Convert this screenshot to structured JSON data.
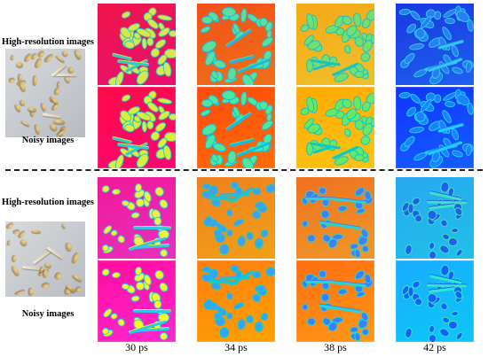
{
  "rows": [
    {
      "hr_label": "High-resolution images",
      "noisy_label": "Noisy images"
    },
    {
      "hr_label": "High-resolution images",
      "noisy_label": "Noisy images"
    }
  ],
  "columns": [
    {
      "label": "30 ps",
      "bg": "#f0154a",
      "bg2": "#e81070",
      "blob": "#d8e84a",
      "edge": "#38c8c0"
    },
    {
      "label": "34 ps",
      "bg": "#f2501a",
      "bg2": "#f07018",
      "blob": "#58e0a0",
      "edge": "#20b8d8"
    },
    {
      "label": "38 ps",
      "bg": "#f6a818",
      "bg2": "#f0c028",
      "blob": "#70e070",
      "edge": "#20c0c0"
    },
    {
      "label": "42 ps",
      "bg": "#1838e0",
      "bg2": "#2060f0",
      "blob": "#2880f0",
      "edge": "#30c8f0"
    }
  ],
  "columns_bottom": [
    {
      "bg": "#f01898",
      "bg2": "#e830c0",
      "blob": "#f0f040",
      "edge": "#30c8e0"
    },
    {
      "bg": "#f08020",
      "bg2": "#f0a018",
      "blob": "#40a0f0",
      "edge": "#20c8c0"
    },
    {
      "bg": "#f07020",
      "bg2": "#f09828",
      "blob": "#4080f0",
      "edge": "#30d0d0"
    },
    {
      "bg": "#28a8f0",
      "bg2": "#20c0e8",
      "blob": "#2060e8",
      "edge": "#40e0c0"
    }
  ]
}
